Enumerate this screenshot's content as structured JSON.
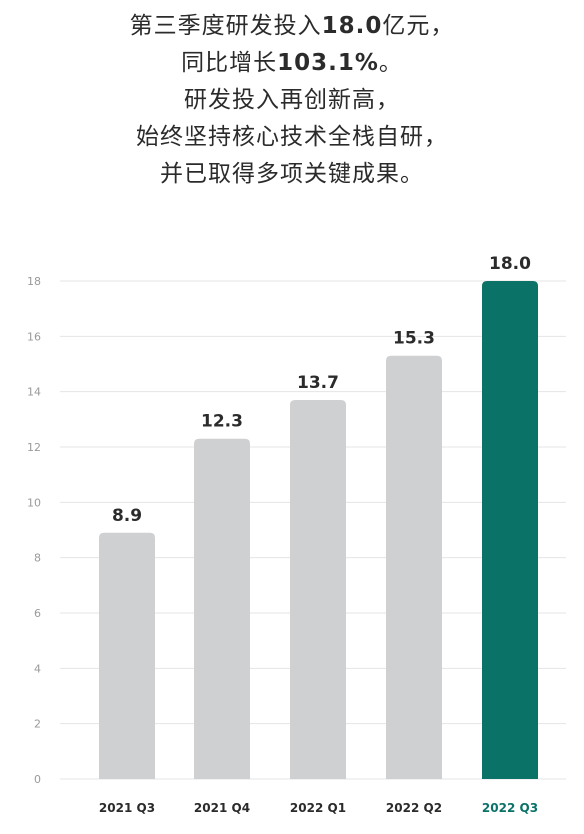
{
  "headline": {
    "line1_a": "第三季度研发投入",
    "line1_b": "18.0",
    "line1_c": "亿元，",
    "line2_a": "同比增长",
    "line2_b": "103.1%",
    "line2_c": "。",
    "line3": "研发投入再创新高，",
    "line4": "始终坚持核心技术全栈自研，",
    "line5": "并已取得多项关键成果。"
  },
  "colors": {
    "bar": "#cfd0d2",
    "highlight": "#0b7268",
    "grid": "#e4e4e4",
    "tick": "#9a9a9a",
    "label": "#2b2b2b"
  },
  "chart_data": {
    "type": "bar",
    "categories": [
      "2021 Q3",
      "2021 Q4",
      "2022 Q1",
      "2022 Q2",
      "2022 Q3"
    ],
    "values": [
      8.9,
      12.3,
      13.7,
      15.3,
      18.0
    ],
    "value_labels": [
      "8.9",
      "12.3",
      "13.7",
      "15.3",
      "18.0"
    ],
    "highlight_index": 4,
    "yticks": [
      0,
      2,
      4,
      6,
      8,
      10,
      12,
      14,
      16,
      18
    ],
    "ylim": [
      0,
      18
    ],
    "grid": true
  }
}
